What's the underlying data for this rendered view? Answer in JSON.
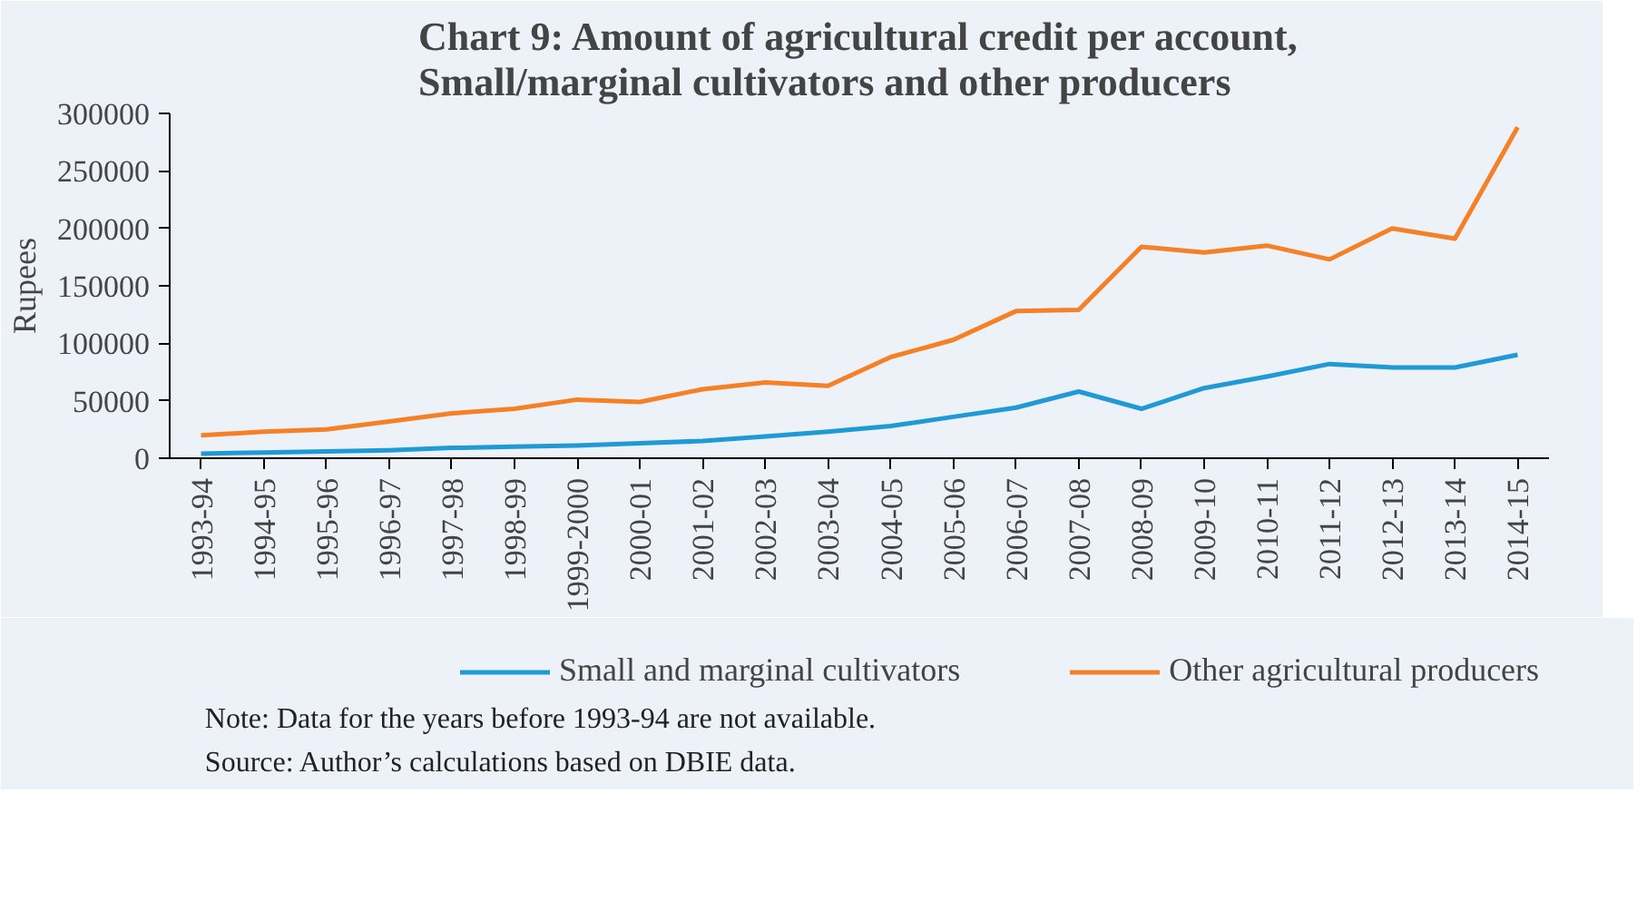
{
  "chart_data": {
    "type": "line",
    "title": "Chart 9: Amount of agricultural credit per account,\nSmall/marginal cultivators  and other producers",
    "ylabel": "Rupees",
    "categories": [
      "1993-94",
      "1994-95",
      "1995-96",
      "1996-97",
      "1997-98",
      "1998-99",
      "1999-2000",
      "2000-01",
      "2001-02",
      "2002-03",
      "2003-04",
      "2004-05",
      "2005-06",
      "2006-07",
      "2007-08",
      "2008-09",
      "2009-10",
      "2010-11",
      "2011-12",
      "2012-13",
      "2013-14",
      "2014-15"
    ],
    "series": [
      {
        "name": "Small and marginal cultivators",
        "color": "#1f9ad6",
        "values": [
          4000,
          5000,
          6000,
          7000,
          9000,
          10000,
          11000,
          13000,
          15000,
          19000,
          23000,
          28000,
          36000,
          44000,
          58000,
          43000,
          61000,
          71000,
          82000,
          79000,
          79000,
          90000
        ]
      },
      {
        "name": "Other agricultural producers",
        "color": "#f58025",
        "values": [
          20000,
          23000,
          25000,
          32000,
          39000,
          43000,
          51000,
          49000,
          60000,
          66000,
          63000,
          88000,
          103000,
          128000,
          129000,
          184000,
          179000,
          185000,
          173000,
          200000,
          191000,
          288000
        ]
      }
    ],
    "ylim": [
      0,
      300000
    ],
    "yticks": [
      0,
      50000,
      100000,
      150000,
      200000,
      250000,
      300000
    ],
    "grid": false,
    "legend": "bottom",
    "marker": "none",
    "line_style": "solid",
    "annotations": [
      "Note: Data for the years before 1993-94 are not available.",
      "Source: Author’s calculations based on DBIE data."
    ]
  }
}
